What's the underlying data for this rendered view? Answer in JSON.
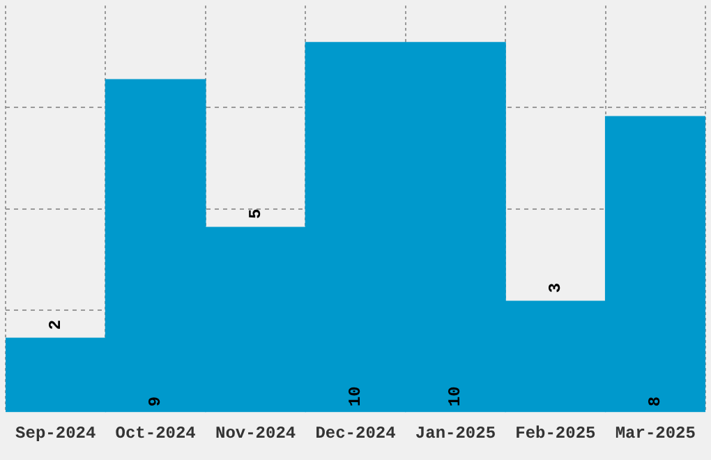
{
  "chart_data": {
    "type": "bar",
    "categories": [
      "Sep-2024",
      "Oct-2024",
      "Nov-2024",
      "Dec-2024",
      "Jan-2025",
      "Feb-2025",
      "Mar-2025"
    ],
    "values": [
      2,
      9,
      5,
      10,
      10,
      3,
      8
    ],
    "color": "#0099cc",
    "data_labels": true,
    "ylim": [
      0,
      11
    ],
    "yticks": [
      {
        "value": 2.75,
        "label": null
      },
      {
        "value": 5.5,
        "label": null
      },
      {
        "value": 8.25,
        "label": null
      }
    ],
    "grid": true,
    "tick_labels": "x",
    "legend": false
  }
}
